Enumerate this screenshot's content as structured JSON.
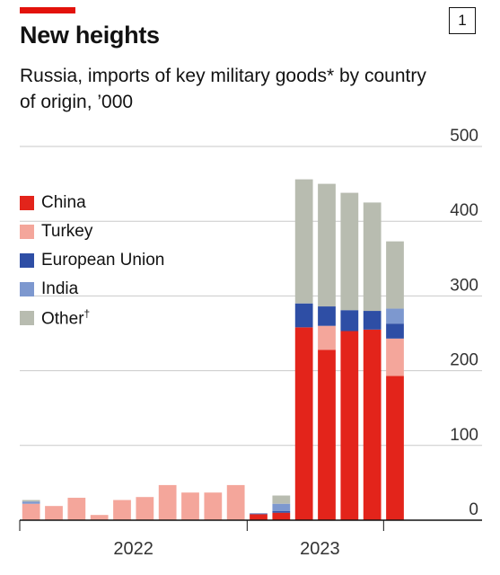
{
  "header": {
    "title": "New heights",
    "badge": "1",
    "subtitle": "Russia, imports of key military goods* by country of origin, ’000"
  },
  "colors": {
    "China": "#e3241b",
    "Turkey": "#f4a69b",
    "European Union": "#2e4ea5",
    "India": "#7d98cf",
    "Other": "#b8bcb0",
    "accent": "#e3120b"
  },
  "chart_data": {
    "type": "bar",
    "stacked": true,
    "title": "New heights",
    "subtitle": "Russia, imports of key military goods* by country of origin, ’000",
    "ylim": [
      0,
      500
    ],
    "y_ticks": [
      "500",
      "400",
      "300",
      "200",
      "100",
      "0"
    ],
    "y_tick_values": [
      500,
      400,
      300,
      200,
      100,
      0
    ],
    "x_tick_labels": [
      "2022",
      "2023"
    ],
    "grid": true,
    "legend_position": "left",
    "legend": [
      {
        "name": "China",
        "label": "China",
        "dagger": ""
      },
      {
        "name": "Turkey",
        "label": "Turkey",
        "dagger": ""
      },
      {
        "name": "European Union",
        "label": "European Union",
        "dagger": ""
      },
      {
        "name": "India",
        "label": "India",
        "dagger": ""
      },
      {
        "name": "Other",
        "label": "Other",
        "dagger": "†"
      }
    ],
    "categories": [
      "2022-01",
      "2022-02",
      "2022-03",
      "2022-04",
      "2022-05",
      "2022-06",
      "2022-07",
      "2022-08",
      "2022-09",
      "2022-10",
      "2022-11",
      "2022-12",
      "2023-01",
      "2023-02",
      "2023-03",
      "2023-04",
      "2023-05",
      "2023-06"
    ],
    "series": [
      {
        "name": "China",
        "values": [
          0,
          0,
          0,
          0,
          0,
          0,
          0,
          0,
          0,
          0,
          8,
          10,
          258,
          228,
          253,
          255,
          193,
          0
        ]
      },
      {
        "name": "Turkey",
        "values": [
          22,
          19,
          30,
          7,
          27,
          31,
          47,
          37,
          37,
          47,
          0,
          0,
          0,
          32,
          0,
          0,
          50,
          0
        ]
      },
      {
        "name": "European Union",
        "values": [
          0,
          0,
          0,
          0,
          0,
          0,
          0,
          0,
          0,
          0,
          1,
          2,
          32,
          26,
          28,
          25,
          20,
          0
        ]
      },
      {
        "name": "India",
        "values": [
          3,
          0,
          0,
          0,
          0,
          0,
          0,
          0,
          0,
          0,
          0,
          10,
          0,
          0,
          0,
          0,
          20,
          0
        ]
      },
      {
        "name": "Other",
        "values": [
          2,
          0,
          0,
          0,
          0,
          0,
          0,
          0,
          0,
          0,
          0,
          11,
          166,
          164,
          157,
          145,
          90,
          0
        ]
      }
    ]
  }
}
